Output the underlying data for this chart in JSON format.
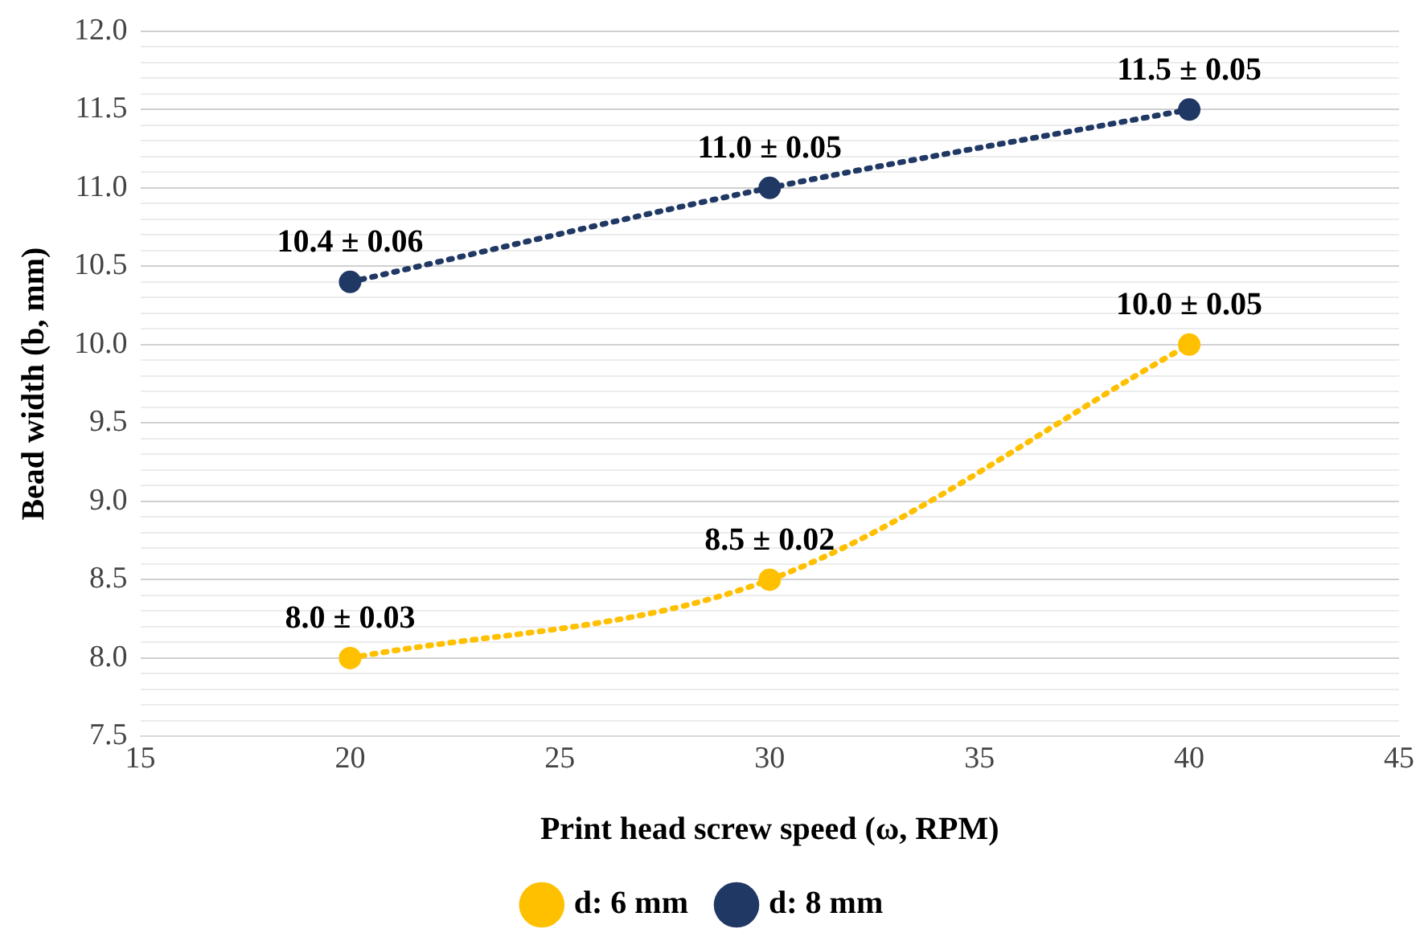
{
  "chart_data": {
    "type": "line",
    "xlabel": "Print head screw speed (ω, RPM)",
    "ylabel": "Bead width (b, mm)",
    "x": [
      20,
      30,
      40
    ],
    "series": [
      {
        "name": "d: 6 mm",
        "color": "#ffc000",
        "values": [
          8.0,
          8.5,
          10.0
        ]
      },
      {
        "name": "d: 8 mm",
        "color": "#203864",
        "values": [
          10.4,
          11.0,
          11.5
        ]
      }
    ],
    "xlim": [
      15,
      45
    ],
    "xticks": [
      15,
      20,
      25,
      30,
      35,
      40,
      45
    ],
    "ylim": [
      7.5,
      12.0
    ],
    "yticks": [
      {
        "value": 7.5,
        "label": "7.5"
      },
      {
        "value": 7.6,
        "label": null
      },
      {
        "value": 7.7,
        "label": null
      },
      {
        "value": 7.8,
        "label": null
      },
      {
        "value": 7.9,
        "label": null
      },
      {
        "value": 8.0,
        "label": "8.0"
      },
      {
        "value": 8.1,
        "label": null
      },
      {
        "value": 8.2,
        "label": null
      },
      {
        "value": 8.3,
        "label": null
      },
      {
        "value": 8.4,
        "label": null
      },
      {
        "value": 8.5,
        "label": "8.5"
      },
      {
        "value": 8.6,
        "label": null
      },
      {
        "value": 8.7,
        "label": null
      },
      {
        "value": 8.8,
        "label": null
      },
      {
        "value": 8.9,
        "label": null
      },
      {
        "value": 9.0,
        "label": "9.0"
      },
      {
        "value": 9.1,
        "label": null
      },
      {
        "value": 9.2,
        "label": null
      },
      {
        "value": 9.3,
        "label": null
      },
      {
        "value": 9.4,
        "label": null
      },
      {
        "value": 9.5,
        "label": "9.5"
      },
      {
        "value": 9.6,
        "label": null
      },
      {
        "value": 9.7,
        "label": null
      },
      {
        "value": 9.8,
        "label": null
      },
      {
        "value": 9.9,
        "label": null
      },
      {
        "value": 10.0,
        "label": "10.0"
      },
      {
        "value": 10.1,
        "label": null
      },
      {
        "value": 10.2,
        "label": null
      },
      {
        "value": 10.3,
        "label": null
      },
      {
        "value": 10.4,
        "label": null
      },
      {
        "value": 10.5,
        "label": "10.5"
      },
      {
        "value": 10.6,
        "label": null
      },
      {
        "value": 10.7,
        "label": null
      },
      {
        "value": 10.8,
        "label": null
      },
      {
        "value": 10.9,
        "label": null
      },
      {
        "value": 11.0,
        "label": "11.0"
      },
      {
        "value": 11.1,
        "label": null
      },
      {
        "value": 11.2,
        "label": null
      },
      {
        "value": 11.3,
        "label": null
      },
      {
        "value": 11.4,
        "label": null
      },
      {
        "value": 11.5,
        "label": "11.5"
      },
      {
        "value": 11.6,
        "label": null
      },
      {
        "value": 11.7,
        "label": null
      },
      {
        "value": 11.8,
        "label": null
      },
      {
        "value": 11.9,
        "label": null
      },
      {
        "value": 12.0,
        "label": "12.0"
      }
    ],
    "grid": "y",
    "legend": "bottom",
    "marker": "circle",
    "line_style": "dotted",
    "annotations": [
      {
        "text": "8.0 ± 0.03",
        "x": 20,
        "y": 8.0
      },
      {
        "text": "8.5 ± 0.02",
        "x": 30,
        "y": 8.5
      },
      {
        "text": "10.0 ± 0.05",
        "x": 40,
        "y": 10.0
      },
      {
        "text": "10.4 ± 0.06",
        "x": 20,
        "y": 10.4
      },
      {
        "text": "11.0 ± 0.05",
        "x": 30,
        "y": 11.0
      },
      {
        "text": "11.5 ± 0.05",
        "x": 40,
        "y": 11.5
      }
    ]
  }
}
